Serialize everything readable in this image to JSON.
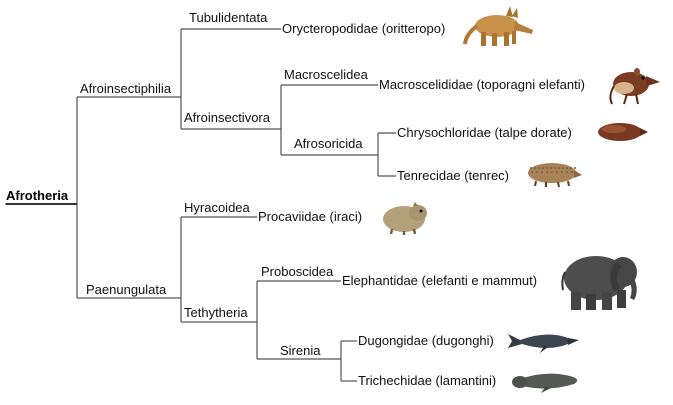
{
  "root": {
    "label": "Afrotheria"
  },
  "clades": {
    "afroinsectiphilia": "Afroinsectiphilia",
    "paenungulata": "Paenungulata",
    "tubulidentata": "Tubulidentata",
    "afroinsectivora": "Afroinsectivora",
    "macroscelidea": "Macroscelidea",
    "afrosoricida": "Afrosoricida",
    "hyracoidea": "Hyracoidea",
    "tethytheria": "Tethytheria",
    "proboscidea": "Proboscidea",
    "sirenia": "Sirenia"
  },
  "taxa": [
    {
      "key": "orycteropodidae",
      "label": "Orycteropodidae (oritteropo)",
      "icon": "aardvark-icon"
    },
    {
      "key": "macroscelididae",
      "label": "Macroscelididae (toporagni elefanti)",
      "icon": "elephant-shrew-icon"
    },
    {
      "key": "chrysochloridae",
      "label": "Chrysochloridae (talpe dorate)",
      "icon": "golden-mole-icon"
    },
    {
      "key": "tenrecidae",
      "label": "Tenrecidae (tenrec)",
      "icon": "tenrec-icon"
    },
    {
      "key": "procaviidae",
      "label": "Procaviidae (iraci)",
      "icon": "hyrax-icon"
    },
    {
      "key": "elephantidae",
      "label": "Elephantidae (elefanti e mammut)",
      "icon": "elephant-icon"
    },
    {
      "key": "dugongidae",
      "label": "Dugongidae (dugonghi)",
      "icon": "dugong-icon"
    },
    {
      "key": "trichechidae",
      "label": "Trichechidae (lamantini)",
      "icon": "manatee-icon"
    }
  ]
}
